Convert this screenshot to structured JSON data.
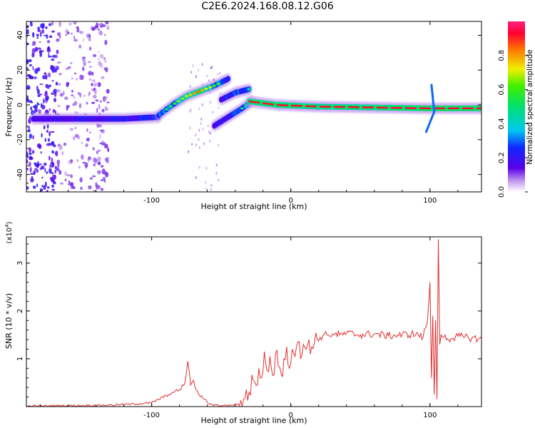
{
  "figure_title": "C2E6.2024.168.08.12.G06",
  "colors": {
    "signal_line": "#e0302e",
    "axis": "#000000",
    "spectrogram_core": "#e8102a",
    "spectrogram_mid": "#1ed860",
    "spectrogram_edge": "#3a00e8",
    "spectrogram_halo": "#c8a0f0"
  },
  "chart_data": [
    {
      "type": "heatmap",
      "xlabel": "Height of straight line (km)",
      "ylabel": "Frequency (Hz)",
      "xlim": [
        -190,
        137
      ],
      "ylim": [
        -50,
        48
      ],
      "x_ticks": [
        -100,
        0,
        100
      ],
      "y_ticks": [
        -40,
        -20,
        0,
        20,
        40
      ],
      "colorbar": {
        "label": "Normalized spectral amplitude",
        "ticks": [
          0.0,
          0.2,
          0.4,
          0.6,
          0.8
        ],
        "range": [
          0,
          1
        ],
        "colormap": "rainbow (purple-blue-cyan-green-yellow-red-magenta)"
      },
      "traces": [
        {
          "segment": "lower flat band",
          "x": [
            -185,
            -150,
            -120,
            -95
          ],
          "y": [
            -8,
            -8,
            -8,
            -7
          ],
          "amplitude": [
            0.2,
            0.3,
            0.35,
            0.4
          ]
        },
        {
          "segment": "rising branch",
          "x": [
            -95,
            -85,
            -75,
            -65,
            -55,
            -45
          ],
          "y": [
            -6,
            0,
            5,
            8,
            11,
            15
          ],
          "amplitude": [
            0.45,
            0.55,
            0.7,
            0.85,
            0.6,
            0.4
          ]
        },
        {
          "segment": "crossing branch",
          "x": [
            -55,
            -45,
            -35,
            -28
          ],
          "y": [
            -12,
            -7,
            -2,
            2
          ],
          "amplitude": [
            0.3,
            0.4,
            0.5,
            0.55
          ]
        },
        {
          "segment": "upper branch",
          "x": [
            -50,
            -40,
            -30
          ],
          "y": [
            3,
            7,
            9
          ],
          "amplitude": [
            0.35,
            0.45,
            0.5
          ]
        },
        {
          "segment": "near-zero band",
          "x": [
            -30,
            -10,
            20,
            60,
            100,
            137
          ],
          "y": [
            2,
            0,
            -1,
            -1.5,
            -2,
            -2
          ],
          "amplitude": [
            0.85,
            0.9,
            0.7,
            0.8,
            0.95,
            0.9
          ]
        }
      ]
    },
    {
      "type": "line",
      "xlabel": "Height of straight line (km)",
      "ylabel": "SNR (10 * v/v)",
      "y_multiplier": "(x10^4)",
      "y_multiplier_base": "(x10",
      "y_multiplier_exp": "4",
      "xlim": [
        -190,
        137
      ],
      "ylim": [
        0,
        3.55
      ],
      "x_ticks": [
        -100,
        0,
        100
      ],
      "y_ticks": [
        1,
        2,
        3
      ],
      "series": [
        {
          "values_unit": "x10^4",
          "x": [
            -190,
            -160,
            -130,
            -115,
            -100,
            -95,
            -88,
            -84,
            -80,
            -76,
            -74,
            -72,
            -70,
            -68,
            -66,
            -62,
            -58,
            -50,
            -42,
            -38,
            -34,
            -30,
            -27,
            -25,
            -23,
            -21,
            -19,
            -17,
            -15,
            -13,
            -11,
            -9,
            -7,
            -5,
            -3,
            -1,
            1,
            3,
            5,
            7,
            9,
            11,
            13,
            15,
            17,
            19,
            21,
            23,
            26,
            30,
            35,
            40,
            50,
            60,
            70,
            80,
            90,
            95,
            98,
            100,
            101,
            102,
            103,
            104,
            105,
            106,
            107,
            108,
            110,
            115,
            120,
            125,
            130,
            137
          ],
          "y": [
            0.01,
            0.02,
            0.03,
            0.05,
            0.08,
            0.15,
            0.25,
            0.3,
            0.35,
            0.5,
            0.95,
            0.45,
            0.55,
            0.35,
            0.25,
            0.15,
            0.05,
            0.02,
            0.03,
            0.05,
            0.15,
            0.3,
            0.55,
            0.45,
            0.8,
            0.6,
            1.15,
            0.75,
            1.05,
            0.65,
            1.1,
            0.85,
            0.7,
            1.0,
            1.25,
            0.8,
            1.2,
            1.05,
            1.35,
            1.0,
            1.3,
            1.2,
            1.4,
            1.25,
            1.35,
            1.4,
            1.45,
            1.48,
            1.5,
            1.52,
            1.5,
            1.53,
            1.5,
            1.52,
            1.48,
            1.5,
            1.52,
            1.45,
            1.75,
            2.6,
            0.6,
            1.9,
            0.25,
            1.8,
            0.15,
            3.5,
            1.3,
            1.5,
            1.45,
            1.42,
            1.47,
            1.45,
            1.43,
            1.42
          ]
        }
      ]
    }
  ]
}
